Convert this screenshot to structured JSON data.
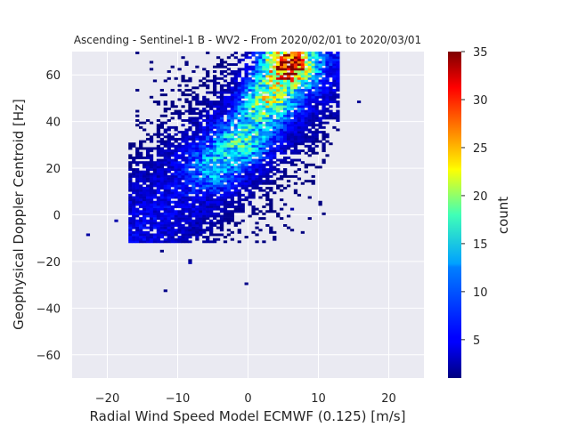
{
  "chart_data": {
    "type": "heatmap",
    "title": "Ascending - Sentinel-1 B - WV2 - From 2020/02/01 to 2020/03/01",
    "xlabel": "Radial Wind Speed Model ECMWF (0.125) [m/s]",
    "ylabel": "Geophysical Doppler Centroid [Hz]",
    "xlim": [
      -25,
      25
    ],
    "ylim": [
      -70,
      70
    ],
    "xticks": [
      -20,
      -10,
      0,
      10,
      20
    ],
    "yticks": [
      -60,
      -40,
      -20,
      0,
      20,
      40,
      60
    ],
    "grid": true,
    "bin_width_x": 0.5,
    "bin_height_y": 1.0,
    "colormap": "jet",
    "colorbar": {
      "label": "count",
      "range": [
        1,
        35
      ],
      "ticks": [
        5,
        10,
        15,
        20,
        25,
        30,
        35
      ]
    },
    "density_centers": [
      {
        "x": 5.5,
        "y": 64,
        "peak_count": 34
      },
      {
        "x": 2.5,
        "y": 48,
        "peak_count": 16
      },
      {
        "x": -1.0,
        "y": 32,
        "peak_count": 12
      },
      {
        "x": -5.0,
        "y": 20,
        "peak_count": 8
      }
    ],
    "outlier_bins": [
      {
        "x": -23,
        "y": -9
      },
      {
        "x": -12.5,
        "y": -16
      },
      {
        "x": -12,
        "y": -33
      },
      {
        "x": -8.5,
        "y": -20
      },
      {
        "x": -8.5,
        "y": -21
      },
      {
        "x": -0.5,
        "y": -30
      },
      {
        "x": 6,
        "y": 2
      },
      {
        "x": 15.5,
        "y": 48
      },
      {
        "x": -19,
        "y": -3
      }
    ]
  },
  "colors": {
    "plot_background": "#eaeaf2",
    "grid": "#ffffff",
    "text": "#262626"
  }
}
